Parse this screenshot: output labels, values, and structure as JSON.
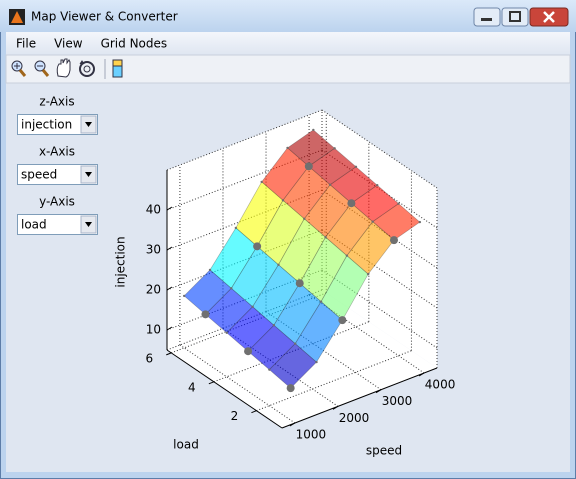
{
  "window": {
    "title": "Map Viewer & Converter"
  },
  "menu": [
    "File",
    "View",
    "Grid Nodes"
  ],
  "controls": [
    {
      "label": "z-Axis",
      "value": "injection"
    },
    {
      "label": "x-Axis",
      "value": "speed"
    },
    {
      "label": "y-Axis",
      "value": "load"
    }
  ],
  "chart_data": {
    "type": "surface",
    "x_label": "speed",
    "y_label": "load",
    "z_label": "injection",
    "x": [
      1000,
      1600,
      2200,
      2800,
      3400,
      4000
    ],
    "y": [
      1,
      2,
      3,
      4,
      5,
      6
    ],
    "z": [
      [
        13,
        17,
        25,
        34,
        40,
        42
      ],
      [
        14,
        18,
        26,
        35,
        41,
        43
      ],
      [
        15,
        19,
        27,
        36,
        42,
        44
      ],
      [
        16,
        20,
        28,
        37,
        43,
        45
      ],
      [
        17,
        21,
        29,
        38,
        44,
        46
      ],
      [
        18,
        22,
        30,
        39,
        45,
        47
      ]
    ],
    "xlim": [
      700,
      4300
    ],
    "ylim": [
      0.8,
      6.2
    ],
    "zlim": [
      5,
      50
    ],
    "xticks": [
      1000,
      2000,
      3000,
      4000
    ],
    "yticks": [
      2,
      4,
      6
    ],
    "zticks": [
      10,
      20,
      30,
      40
    ],
    "grid": true
  }
}
